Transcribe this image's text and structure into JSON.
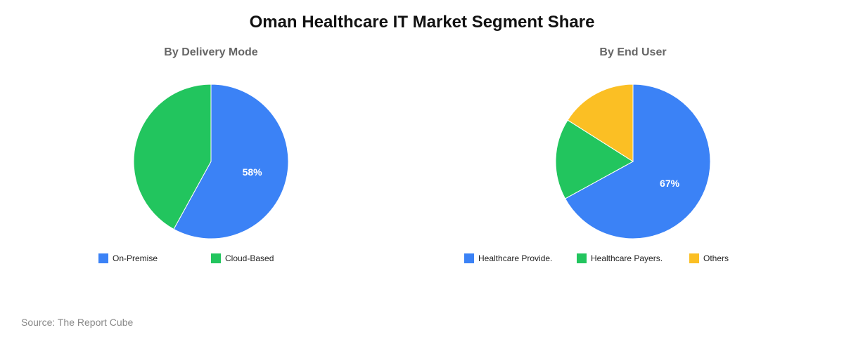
{
  "title": "Oman Healthcare IT Market Segment Share",
  "source": "Source: The Report Cube",
  "colors": {
    "blue": "#3b82f6",
    "green": "#22c55e",
    "yellow": "#fbbf24"
  },
  "chart_data": [
    {
      "type": "pie",
      "title": "By Delivery Mode",
      "categories": [
        "On-Premise",
        "Cloud-Based"
      ],
      "values": [
        58,
        42
      ],
      "colors": [
        "#3b82f6",
        "#22c55e"
      ],
      "data_labels": [
        "58%",
        ""
      ],
      "legend_position": "bottom"
    },
    {
      "type": "pie",
      "title": "By End User",
      "categories": [
        "Healthcare Provide.",
        "Healthcare Payers.",
        "Others"
      ],
      "values": [
        67,
        17,
        16
      ],
      "colors": [
        "#3b82f6",
        "#22c55e",
        "#fbbf24"
      ],
      "data_labels": [
        "67%",
        "",
        ""
      ],
      "legend_position": "bottom"
    }
  ]
}
